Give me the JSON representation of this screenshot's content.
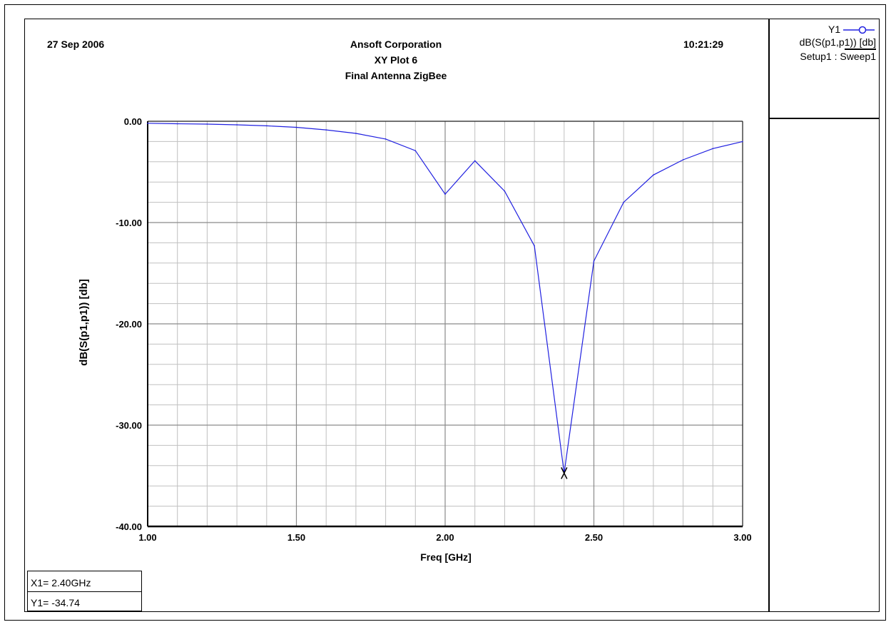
{
  "header": {
    "date": "27 Sep 2006",
    "company": "Ansoft Corporation",
    "plot_name": "XY Plot 6",
    "project": "Final Antenna ZigBee",
    "time": "10:21:29"
  },
  "legend": {
    "trace_label": "Y1",
    "expression": "dB(S(p1,p1)) [db]",
    "setup": "Setup1 : Sweep1"
  },
  "marker": {
    "x_readout": "X1= 2.40GHz",
    "y_readout": "Y1= -34.74"
  },
  "colors": {
    "trace": "#2020e0",
    "grid": "#c0c0c0",
    "grid_major": "#8a8a8a",
    "marker": "#000000"
  },
  "chart_data": {
    "type": "line",
    "title": "Final Antenna ZigBee",
    "xlabel": "Freq [GHz]",
    "ylabel": "dB(S(p1,p1)) [db]",
    "xlim": [
      1.0,
      3.0
    ],
    "ylim": [
      -40.0,
      0.0
    ],
    "x_ticks": [
      1.0,
      1.5,
      2.0,
      2.5,
      3.0
    ],
    "x_tick_labels": [
      "1.00",
      "1.50",
      "2.00",
      "2.50",
      "3.00"
    ],
    "y_ticks": [
      0,
      -10,
      -20,
      -30,
      -40
    ],
    "y_tick_labels": [
      "0.00",
      "-10.00",
      "-20.00",
      "-30.00",
      "-40.00"
    ],
    "x_minor_step": 0.1,
    "y_minor_step": 2,
    "grid": true,
    "legend_position": "top-right",
    "series": [
      {
        "name": "Y1",
        "x": [
          1.0,
          1.1,
          1.2,
          1.3,
          1.4,
          1.5,
          1.6,
          1.7,
          1.8,
          1.9,
          2.0,
          2.1,
          2.2,
          2.3,
          2.4,
          2.5,
          2.6,
          2.7,
          2.8,
          2.9,
          3.0
        ],
        "y": [
          -0.2,
          -0.25,
          -0.28,
          -0.35,
          -0.45,
          -0.6,
          -0.85,
          -1.2,
          -1.75,
          -2.9,
          -7.2,
          -3.9,
          -6.9,
          -12.3,
          -34.74,
          -13.8,
          -8.0,
          -5.3,
          -3.8,
          -2.7,
          -2.0
        ]
      }
    ],
    "markers": [
      {
        "name": "X1",
        "x": 2.4,
        "y": -34.74
      }
    ]
  }
}
